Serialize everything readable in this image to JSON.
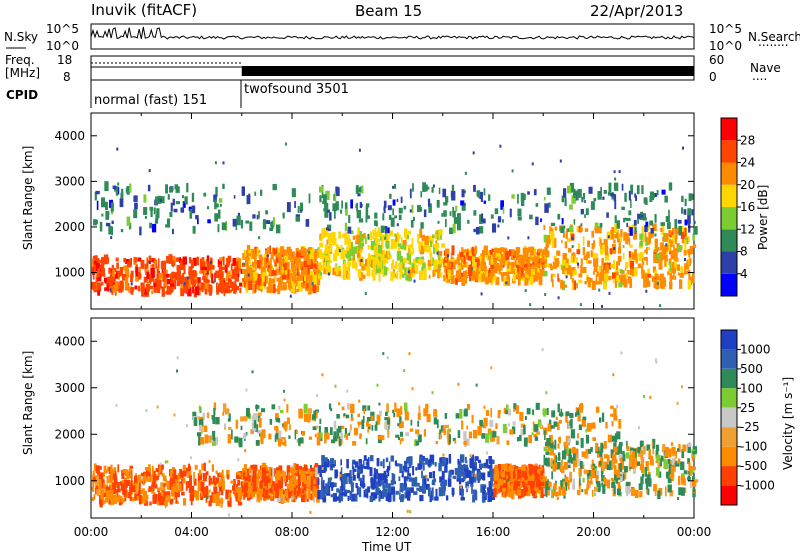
{
  "header": {
    "station": "Inuvik (fitACF)",
    "beam": "Beam 15",
    "date": "22/Apr/2013"
  },
  "noise_panel": {
    "left_label": "N.Sky",
    "left_ticks": [
      "10^5",
      "10^0"
    ],
    "right_ticks": [
      "10^5",
      "10^0"
    ],
    "right_label": "N.Search",
    "right_legend": "........"
  },
  "freq_panel": {
    "left_label_line1": "Freq.",
    "left_label_line2": "[MHz]",
    "left_ticks": [
      "18",
      "8"
    ],
    "right_ticks": [
      "60",
      "0"
    ],
    "right_label": "Nave",
    "right_legend": "...."
  },
  "cpid_panel": {
    "label": "CPID",
    "segments": [
      {
        "name": "normal (fast) 151",
        "start_hour": 0,
        "end_hour": 6
      },
      {
        "name": "twofsound 3501",
        "start_hour": 6,
        "end_hour": 24
      }
    ]
  },
  "colors": {
    "power_scale": [
      "#0000ff",
      "#2f3fa8",
      "#2e8b57",
      "#7ccd32",
      "#ffd700",
      "#ff8c00",
      "#ff4500",
      "#ff0000"
    ],
    "velocity_scale": [
      "#1f3fc4",
      "#2f5fb0",
      "#2e8b57",
      "#7ccd32",
      "#c8c8c8",
      "#f0a030",
      "#ff8c00",
      "#ff4000",
      "#ff0000"
    ],
    "gray_scatter": "#cfcfc8"
  },
  "chart_data": [
    {
      "type": "heatmap",
      "panel": "power",
      "ylabel": "Slant Range [km]",
      "ylim": [
        200,
        4500
      ],
      "y_ticks": [
        "1000",
        "2000",
        "3000",
        "4000"
      ],
      "xlim": [
        0,
        24
      ],
      "colorbar": {
        "label": "Power [dB]",
        "ticks": [
          "4",
          "8",
          "12",
          "16",
          "20",
          "24",
          "28"
        ],
        "range": [
          0,
          32
        ]
      },
      "bands": [
        {
          "t0": 0,
          "t1": 6,
          "r0": 550,
          "r1": 1300,
          "value": 26
        },
        {
          "t0": 6,
          "t1": 9,
          "r0": 600,
          "r1": 1500,
          "value": 22
        },
        {
          "t0": 9,
          "t1": 14,
          "r0": 900,
          "r1": 1900,
          "value": 18
        },
        {
          "t0": 14,
          "t1": 18,
          "r0": 800,
          "r1": 1500,
          "value": 22
        },
        {
          "t0": 18,
          "t1": 24,
          "r0": 700,
          "r1": 2000,
          "value": 20
        },
        {
          "t0": 0,
          "t1": 24,
          "r0": 1900,
          "r1": 2900,
          "value": 8
        }
      ]
    },
    {
      "type": "heatmap",
      "panel": "velocity",
      "ylabel": "Slant Range [km]",
      "ylim": [
        200,
        4500
      ],
      "y_ticks": [
        "1000",
        "2000",
        "3000",
        "4000"
      ],
      "xlabel": "Time UT",
      "x_ticks": [
        "00:00",
        "04:00",
        "08:00",
        "12:00",
        "16:00",
        "20:00",
        "00:00"
      ],
      "xlim": [
        0,
        24
      ],
      "colorbar": {
        "label": "Velocity [m s⁻¹]",
        "ticks": [
          "1000",
          "500",
          "100",
          "25",
          "-25",
          "-100",
          "-500",
          "-1000"
        ]
      },
      "bands": [
        {
          "t0": 0,
          "t1": 6,
          "r0": 500,
          "r1": 1300,
          "value": -300
        },
        {
          "t0": 6,
          "t1": 9,
          "r0": 600,
          "r1": 1300,
          "value": -250
        },
        {
          "t0": 9,
          "t1": 16,
          "r0": 600,
          "r1": 1500,
          "value": 700
        },
        {
          "t0": 16,
          "t1": 18,
          "r0": 700,
          "r1": 1300,
          "value": -300
        },
        {
          "t0": 18,
          "t1": 24,
          "r0": 700,
          "r1": 1800,
          "value": 0
        },
        {
          "t0": 4,
          "t1": 21,
          "r0": 1800,
          "r1": 2600,
          "value": 0
        }
      ]
    }
  ]
}
